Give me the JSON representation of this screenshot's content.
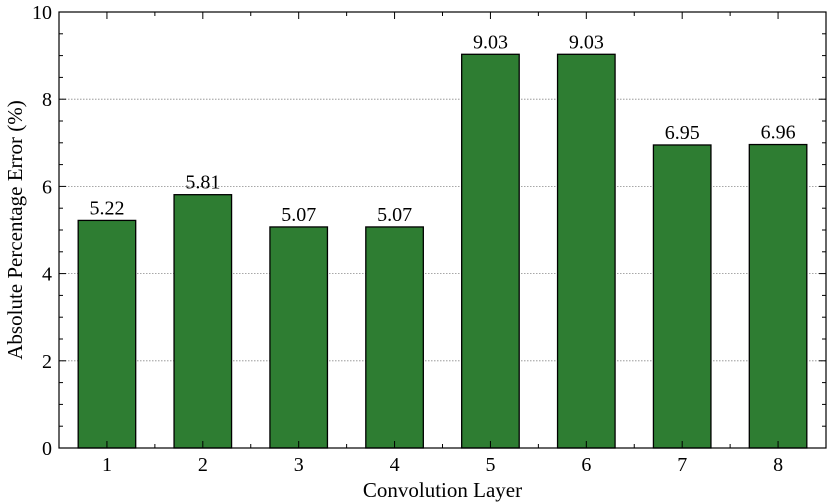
{
  "chart_data": {
    "type": "bar",
    "categories": [
      "1",
      "2",
      "3",
      "4",
      "5",
      "6",
      "7",
      "8"
    ],
    "values": [
      5.22,
      5.81,
      5.07,
      5.07,
      9.03,
      9.03,
      6.95,
      6.96
    ],
    "value_labels": [
      "5.22",
      "5.81",
      "5.07",
      "5.07",
      "9.03",
      "9.03",
      "6.95",
      "6.96"
    ],
    "title": "",
    "xlabel": "Convolution Layer",
    "ylabel": "Absolute Percentage Error (%)",
    "ylim": [
      0,
      10
    ],
    "yticks": [
      "0",
      "2",
      "4",
      "6",
      "8",
      "10"
    ],
    "grid": "horizontal",
    "bar_color": "#2e7d32"
  }
}
